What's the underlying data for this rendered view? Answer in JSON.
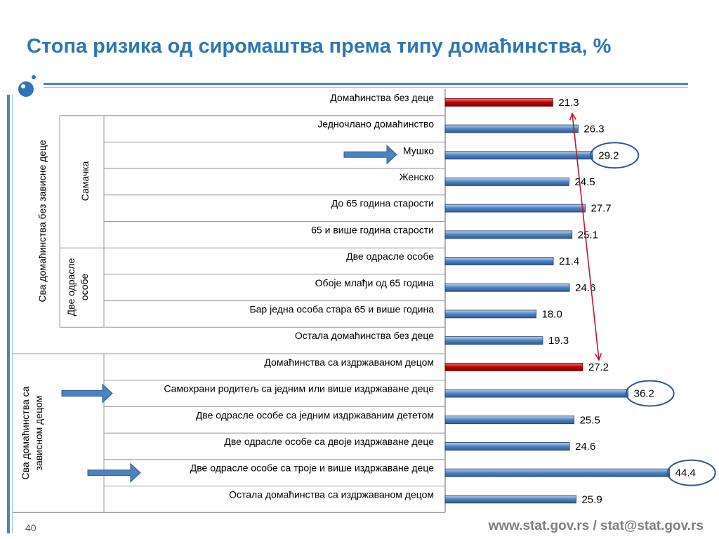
{
  "title": "Стопа ризика од сиромаштва према типу домаћинства, %",
  "page_number": "40",
  "footer_url": "www.stat.gov.rs / stat@stat.gov.rs",
  "groups": {
    "outer_top": "Сва домаћинства без зависне деце",
    "single": "Самачка",
    "two_adults": [
      "Две одрасле",
      "особе"
    ],
    "outer_bottom": [
      "Сва домаћинства са",
      "зависном децом"
    ]
  },
  "colors": {
    "blue_bar": "#4f81bd",
    "red_bar": "#c00000",
    "circle": "#2e5597",
    "arrow": "#4f81bd",
    "red_line": "#c0152f"
  },
  "chart_data": {
    "type": "bar",
    "orientation": "horizontal",
    "categories": [
      "Домаћинства без деце",
      "Једночлано домаћинство",
      "Мушко",
      "Женско",
      "До 65 година старости",
      "65 и више година старости",
      "Две одрасле особе",
      "Обоје млађи од 65 година",
      "Бар једна особа стара 65 и више година",
      "Остала домаћинства без деце",
      "Домаћинства са издржаваном децом",
      "Самохрани родитељ са једним или више издржаване деце",
      "Две одрасле особе са једним издржаваним дететом",
      "Две одрасле особе са двоје издржаване деце",
      "Две одрасле особе са троје и више издржаване деце",
      "Остала домаћинства са издржаваном децом"
    ],
    "values": [
      21.3,
      26.3,
      29.2,
      24.5,
      27.7,
      25.1,
      21.4,
      24.6,
      18.0,
      19.3,
      27.2,
      36.2,
      25.5,
      24.6,
      44.4,
      25.9
    ],
    "value_labels": [
      "21.3",
      "26.3",
      "29.2",
      "24.5",
      "27.7",
      "25.1",
      "21.4",
      "24.6",
      "18.0",
      "19.3",
      "27.2",
      "36.2",
      "25.5",
      "24.6",
      "44.4",
      "25.9"
    ],
    "highlighted_red": [
      0,
      10
    ],
    "circled": [
      2,
      11,
      14
    ],
    "arrows_on": [
      2,
      11,
      14
    ],
    "xlim": [
      0,
      47
    ],
    "legend": "none",
    "grid": false
  }
}
